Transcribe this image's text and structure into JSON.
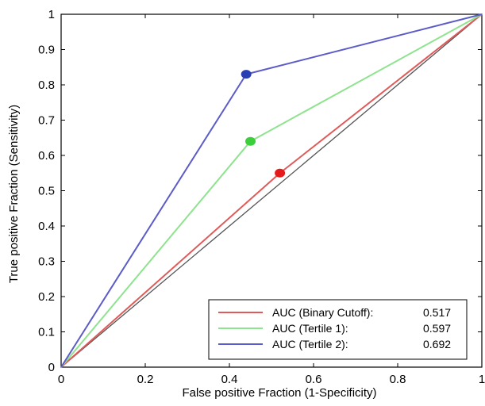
{
  "chart_data": {
    "type": "line",
    "title": "",
    "xlabel": "False positive Fraction (1-Specificity)",
    "ylabel": "True positive Fraction (Sensitivity)",
    "xlim": [
      0,
      1
    ],
    "ylim": [
      0,
      1
    ],
    "x_ticks": [
      "0",
      "0.2",
      "0.4",
      "0.6",
      "0.8",
      "1"
    ],
    "y_ticks": [
      "0",
      "0.1",
      "0.2",
      "0.3",
      "0.4",
      "0.5",
      "0.6",
      "0.7",
      "0.8",
      "0.9",
      "1"
    ],
    "grid": false,
    "legend_position": "bottom-right",
    "reference_line": {
      "x": [
        0,
        1
      ],
      "y": [
        0,
        1
      ],
      "color": "#555555"
    },
    "series": [
      {
        "name": "AUC (Binary Cutoff):",
        "auc": "0.517",
        "color": "#e05a5a",
        "marker_color": "#e51b1b",
        "x": [
          0,
          0.52,
          1
        ],
        "y": [
          0,
          0.55,
          1
        ],
        "marker": [
          0.52,
          0.55
        ]
      },
      {
        "name": "AUC (Tertile 1):",
        "auc": "0.597",
        "color": "#8ee38e",
        "marker_color": "#3ccf3c",
        "x": [
          0,
          0.45,
          1
        ],
        "y": [
          0,
          0.64,
          1
        ],
        "marker": [
          0.45,
          0.64
        ]
      },
      {
        "name": "AUC (Tertile 2):",
        "auc": "0.692",
        "color": "#5c5cc8",
        "marker_color": "#2a3fb4",
        "x": [
          0,
          0.44,
          1
        ],
        "y": [
          0,
          0.83,
          1
        ],
        "marker": [
          0.44,
          0.83
        ]
      }
    ]
  }
}
